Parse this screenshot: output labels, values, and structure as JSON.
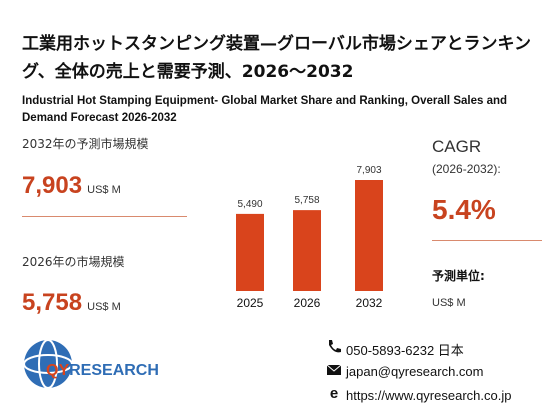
{
  "title": "工業用ホットスタンピング装置—グローバル市場シェアとランキング、全体の売上と需要予測、2026～2032",
  "subtitle": "Industrial Hot Stamping Equipment- Global Market Share and Ranking, Overall Sales and Demand Forecast 2026-2032",
  "stats": [
    {
      "label": "2032年の予測市場規模",
      "value": "7,903",
      "unit": "US$ M"
    },
    {
      "label": "2026年の市場規模",
      "value": "5,758",
      "unit": "US$ M"
    }
  ],
  "cagr": {
    "label": "CAGR",
    "period": "(2026-2032):",
    "value": "5.4%",
    "unit_label": "予測単位:",
    "unit": "US$ M"
  },
  "logo": {
    "part1": "QY",
    "part2": "RESEARCH"
  },
  "contact": {
    "phone": "050-5893-6232 日本",
    "email": "japan@qyresearch.com",
    "web": "https://www.qyresearch.co.jp"
  },
  "chart_data": {
    "type": "bar",
    "categories": [
      "2025",
      "2026",
      "2032"
    ],
    "values": [
      5490,
      5758,
      7903
    ],
    "value_labels": [
      "5,490",
      "5,758",
      "7,903"
    ],
    "color": "#d9441c"
  }
}
